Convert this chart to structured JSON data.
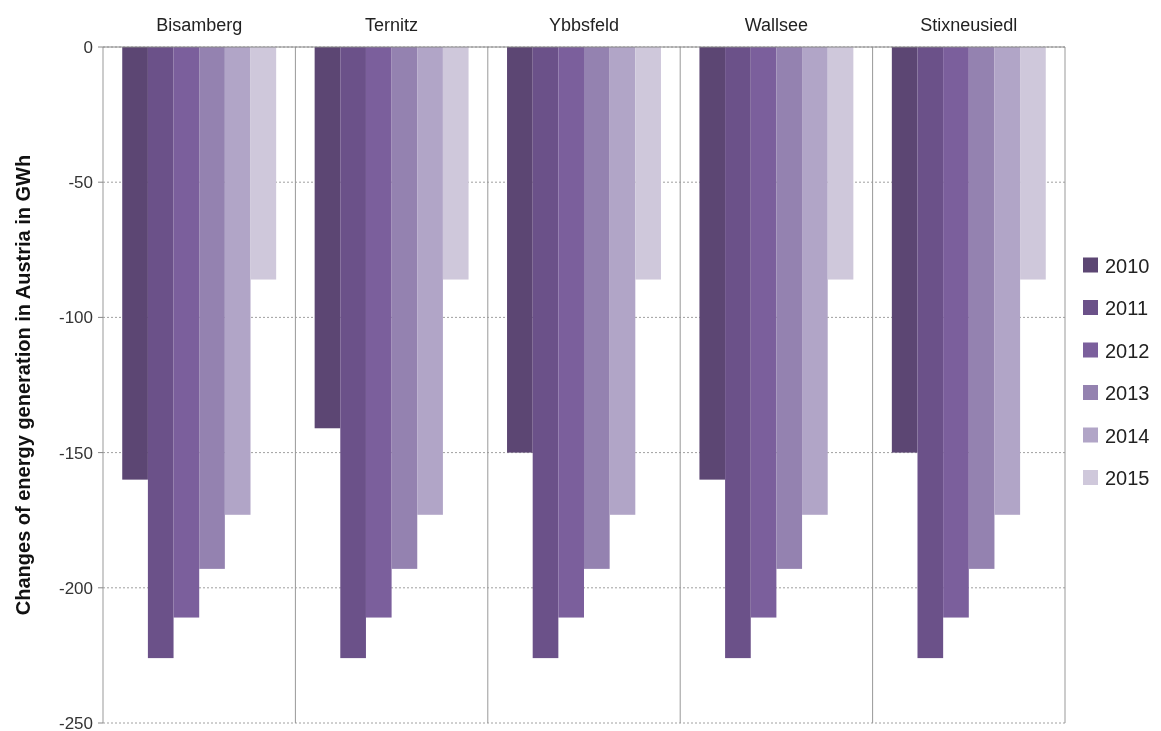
{
  "chart_data": {
    "type": "bar",
    "ylabel": "Changes of energy generation in Austria in GWh",
    "categories": [
      "Bisamberg",
      "Ternitz",
      "Ybbsfeld",
      "Wallsee",
      "Stixneusiedl"
    ],
    "series": [
      {
        "name": "2010",
        "color": "#5c4673",
        "values": [
          -160,
          -141,
          -150,
          -160,
          -150
        ]
      },
      {
        "name": "2011",
        "color": "#6b5189",
        "values": [
          -226,
          -226,
          -226,
          -226,
          -226
        ]
      },
      {
        "name": "2012",
        "color": "#7b5f9c",
        "values": [
          -211,
          -211,
          -211,
          -211,
          -211
        ]
      },
      {
        "name": "2013",
        "color": "#9482b0",
        "values": [
          -193,
          -193,
          -193,
          -193,
          -193
        ]
      },
      {
        "name": "2014",
        "color": "#b1a5c7",
        "values": [
          -173,
          -173,
          -173,
          -173,
          -173
        ]
      },
      {
        "name": "2015",
        "color": "#cfc8db",
        "values": [
          -86,
          -86,
          -86,
          -86,
          -86
        ]
      }
    ],
    "ylim": [
      -250,
      0
    ],
    "yticks": [
      -250,
      -200,
      -150,
      -100,
      -50,
      0
    ],
    "grid": "y",
    "legend": "right"
  }
}
